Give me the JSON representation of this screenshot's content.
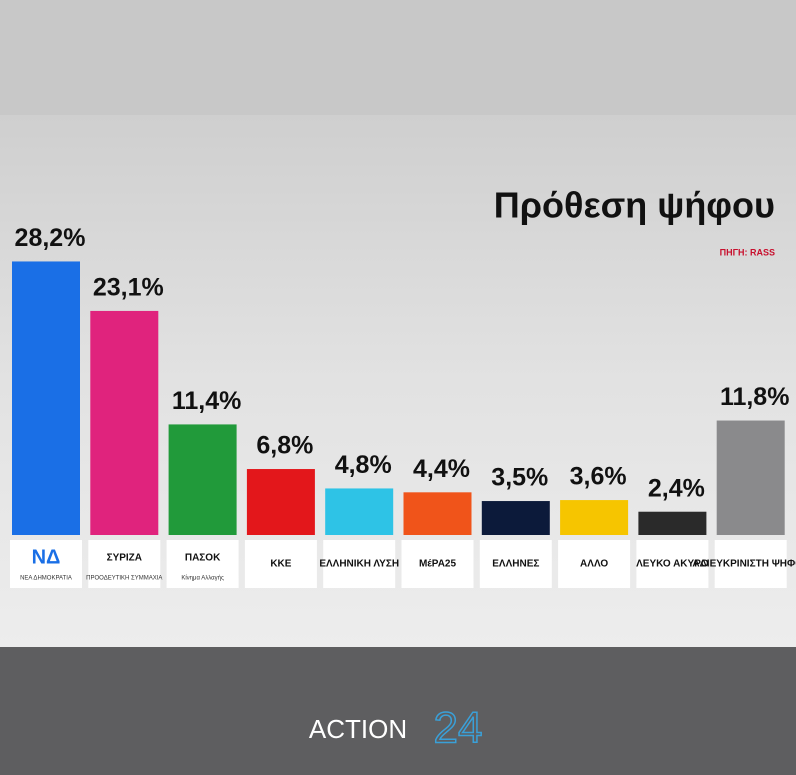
{
  "chart_data": {
    "type": "bar",
    "title": "Πρόθεση ψήφου",
    "source": "ΠΗΓΗ: RASS",
    "categories": [
      "ΝΔ",
      "ΣΥΡΙΖΑ",
      "ΠΑΣΟΚ",
      "ΚΚΕ",
      "ΕΛΛΗΝΙΚΗ ΛΥΣΗ",
      "ΜέΡΑ25",
      "ΕΛΛΗΝΕΣ",
      "ΑΛΛΟ",
      "ΛΕΥΚΟ ΑΚΥΡΟ",
      "ΑΔΙΕΥΚΡΙΝΙΣΤΗ ΨΗΦΟΣ"
    ],
    "category_sublabels": [
      "ΝΕΑ ΔΗΜΟΚΡΑΤΙΑ",
      "ΠΡΟΟΔΕΥΤΙΚΗ ΣΥΜΜΑΧΙΑ",
      "Κίνημα Αλλαγής",
      null,
      null,
      null,
      null,
      null,
      null,
      null
    ],
    "values": [
      28.2,
      23.1,
      11.4,
      6.8,
      4.8,
      4.4,
      3.5,
      3.6,
      2.4,
      11.8
    ],
    "value_labels": [
      "28,2%",
      "23,1%",
      "11,4%",
      "6,8%",
      "4,8%",
      "4,4%",
      "3,5%",
      "3,6%",
      "2,4%",
      "11,8%"
    ],
    "colors": [
      "#1a6fe6",
      "#e0237d",
      "#219a3a",
      "#e3171b",
      "#2ec3e6",
      "#f0541a",
      "#0c1a3a",
      "#f6c500",
      "#2a2a2a",
      "#8a8a8c"
    ]
  },
  "brand": {
    "name": "ACTION",
    "number": "24"
  }
}
